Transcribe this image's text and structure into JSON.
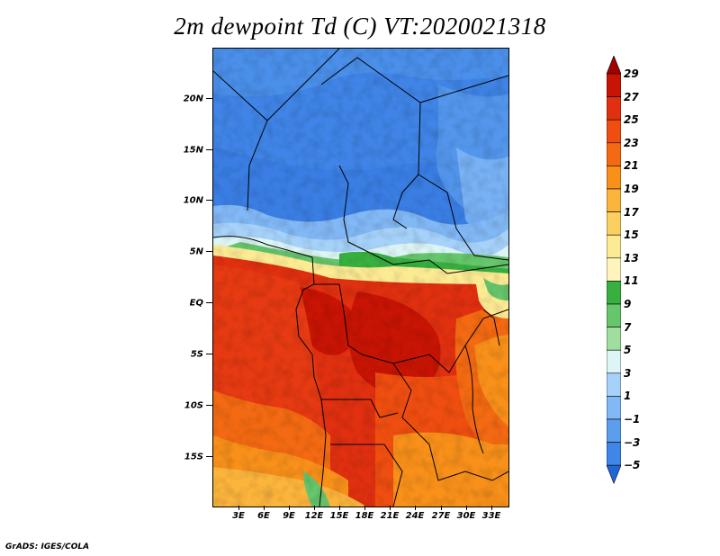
{
  "title": "2m dewpoint Td (C) VT:2020021318",
  "footer": "GrADS: IGES/COLA",
  "y_axis": {
    "labels": [
      "20N",
      "15N",
      "10N",
      "5N",
      "EQ",
      "5S",
      "10S",
      "15S"
    ]
  },
  "x_axis": {
    "labels": [
      "3E",
      "6E",
      "9E",
      "12E",
      "15E",
      "18E",
      "21E",
      "24E",
      "27E",
      "30E",
      "33E"
    ]
  },
  "colorbar": {
    "levels": [
      "29",
      "27",
      "25",
      "23",
      "21",
      "19",
      "17",
      "15",
      "13",
      "11",
      "9",
      "7",
      "5",
      "3",
      "1",
      "-1",
      "-3",
      "-5"
    ],
    "colors": [
      "#a00000",
      "#c81404",
      "#e03010",
      "#f04e10",
      "#f46a12",
      "#f8901a",
      "#fbb43c",
      "#fcd060",
      "#fdeb94",
      "#fff5bc",
      "#38b040",
      "#66c66c",
      "#a0dea0",
      "#ddf5f5",
      "#a6d2fa",
      "#82b8f6",
      "#5c9eee",
      "#3e86e8",
      "#2066d6"
    ]
  }
}
